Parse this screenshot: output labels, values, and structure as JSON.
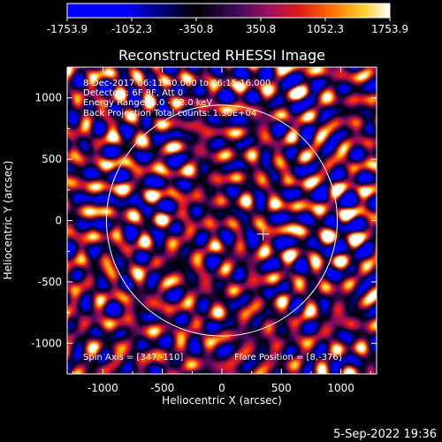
{
  "chart_data": {
    "type": "heatmap",
    "title": "Reconstructed RHESSI Image",
    "xlabel": "Heliocentric X (arcsec)",
    "ylabel": "Heliocentric Y (arcsec)",
    "xlim": [
      -1300,
      1300
    ],
    "ylim": [
      -1250,
      1250
    ],
    "x_ticks": [
      -1000,
      -500,
      0,
      500,
      1000
    ],
    "y_ticks": [
      -1000,
      -500,
      0,
      500,
      1000
    ],
    "colorbar": {
      "range": [
        -1753.9,
        1753.9
      ],
      "ticks": [
        "-1753.9",
        "-1052.3",
        "-350.8",
        "350.8",
        "1052.3",
        "1753.9"
      ],
      "ticks_values": [
        -1753.9,
        -1052.3,
        -350.8,
        350.8,
        1052.3,
        1753.9
      ]
    },
    "annotations": {
      "time": "8-Dec-2017 06:11:40.000 to 06:15:16.000",
      "detectors": "Detectors: 6F 8F, Att 0",
      "energy": "Energy Range: 6.0 - 12.0 keV",
      "method": "Back Projection    Total counts: 1.30E+04",
      "spin_axis": "Spin Axis = [347,-110]",
      "flare_position": "Flare Position = [8,-376]"
    },
    "solar_limb_radius_arcsec": 970,
    "spin_axis_marker": [
      347,
      -110
    ]
  },
  "footer": {
    "date": "5-Sep-2022 19:36"
  },
  "colors": {
    "background": "#000000",
    "foreground": "#ffffff",
    "colormap": [
      "#0000ff",
      "#000000",
      "#5a0a7a",
      "#c0103a",
      "#ff3000",
      "#ffa000",
      "#ffff60",
      "#ffffff"
    ]
  }
}
